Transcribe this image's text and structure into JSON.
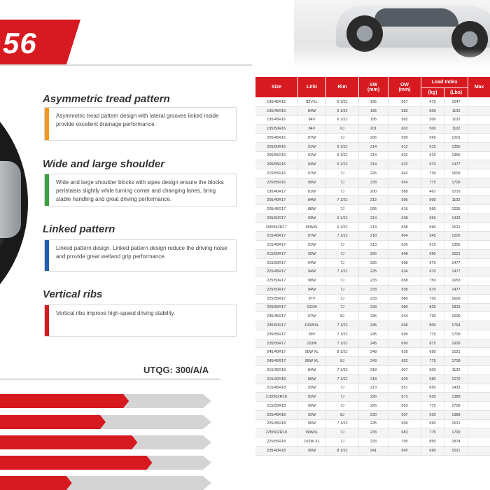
{
  "header": {
    "model": "56",
    "accent_color": "#d71920"
  },
  "features": [
    {
      "title": "Asymmetric tread pattern",
      "text": "Asymmetric tread pattern design with lateral grooves linked inside provide excellent drainage performance.",
      "color": "#f29a1f"
    },
    {
      "title": "Wide and large shoulder",
      "text": "Wide and large shoulder blocks with sipes design ensure the blocks peristalsis slightly while turning corner and changing lanes, bring stable handling and great driving performance.",
      "color": "#3aa142"
    },
    {
      "title": "Linked pattern",
      "text": "Linked pattern design. Linked pattern design reduce the driving noise and provide great wetland grip performance.",
      "color": "#1f5fae"
    },
    {
      "title": "Vertical ribs",
      "text": "Vertical ribs improve high-speed driving stability.",
      "color": "#d71920"
    }
  ],
  "utqg": "UTQG: 300/A/A",
  "bars": [
    0.61,
    0.5,
    0.65,
    0.72,
    0.34
  ],
  "table": {
    "headers": {
      "size": "Size",
      "li_si": "LI/SI",
      "rim": "Rim",
      "sw": "SW",
      "sw_unit": "(mm)",
      "ow": "OW",
      "ow_unit": "(mm)",
      "load_index": "Load Index",
      "kg": "(kg)",
      "lbs": "(Lbs)",
      "max": "Max"
    },
    "rows": [
      [
        "195/45R15",
        "82VXL",
        "6 1/2J",
        "195",
        "557",
        "475",
        "1047"
      ],
      [
        "195/45R16",
        "84W",
        "6 1/2J",
        "195",
        "582",
        "500",
        "1102"
      ],
      [
        "195/45R16",
        "84V",
        "6 1/2J",
        "195",
        "582",
        "500",
        "1102"
      ],
      [
        "195/50R16",
        "84V",
        "6J",
        "201",
        "602",
        "500",
        "1102"
      ],
      [
        "205/45R16",
        "87W",
        "7J",
        "206",
        "590",
        "545",
        "1201"
      ],
      [
        "205/50R16",
        "91W",
        "6 1/2J",
        "214",
        "612",
        "615",
        "1356"
      ],
      [
        "205/55R16",
        "91W",
        "6 1/2J",
        "214",
        "632",
        "615",
        "1356"
      ],
      [
        "205/55R16",
        "94W",
        "6 1/2J",
        "214",
        "632",
        "670",
        "1477"
      ],
      [
        "215/55R16",
        "97W",
        "7J",
        "226",
        "642",
        "730",
        "1609"
      ],
      [
        "225/55R16",
        "99W",
        "7J",
        "233",
        "654",
        "775",
        "1709"
      ],
      [
        "195/40R17",
        "81W",
        "7J",
        "200",
        "588",
        "462",
        "1019"
      ],
      [
        "205/40R17",
        "84W",
        "7 1/2J",
        "212",
        "596",
        "500",
        "1102"
      ],
      [
        "205/45R17",
        "88W",
        "7J",
        "206",
        "616",
        "560",
        "1235"
      ],
      [
        "205/50R17",
        "93W",
        "6 1/2J",
        "214",
        "638",
        "650",
        "1433"
      ],
      [
        "205/55ZR17",
        "95WXL",
        "6 1/2J",
        "214",
        "658",
        "690",
        "1521"
      ],
      [
        "215/40R17",
        "87W",
        "7 1/2J",
        "218",
        "604",
        "545",
        "1202"
      ],
      [
        "215/45R17",
        "91W",
        "7J",
        "213",
        "626",
        "615",
        "1356"
      ],
      [
        "215/50R17",
        "95W",
        "7J",
        "226",
        "648",
        "690",
        "1521"
      ],
      [
        "215/55R17",
        "94W",
        "7J",
        "226",
        "668",
        "670",
        "1477"
      ],
      [
        "225/45R17",
        "94W",
        "7 1/2J",
        "225",
        "634",
        "670",
        "1477"
      ],
      [
        "225/50R17",
        "98W",
        "7J",
        "233",
        "658",
        "750",
        "1653"
      ],
      [
        "225/50R17",
        "94W",
        "7J",
        "233",
        "658",
        "670",
        "1477"
      ],
      [
        "225/55R17",
        "97V",
        "7J",
        "233",
        "680",
        "730",
        "1609"
      ],
      [
        "225/55R17",
        "101W",
        "7J",
        "233",
        "680",
        "825",
        "1819"
      ],
      [
        "235/45R17",
        "97W",
        "8J",
        "236",
        "644",
        "730",
        "1609"
      ],
      [
        "235/50R17",
        "100WXL",
        "7 1/2J",
        "245",
        "668",
        "800",
        "1764"
      ],
      [
        "235/55R17",
        "99V",
        "7 1/2J",
        "245",
        "690",
        "775",
        "1709"
      ],
      [
        "235/55R17",
        "103W",
        "7 1/2J",
        "245",
        "690",
        "875",
        "1929"
      ],
      [
        "245/40R17",
        "95W XL",
        "8 1/2J",
        "248",
        "628",
        "690",
        "1521"
      ],
      [
        "245/45R17",
        "99W XL",
        "8J",
        "243",
        "652",
        "775",
        "1709"
      ],
      [
        "215/35R18",
        "84W",
        "7 1/2J",
        "218",
        "607",
        "500",
        "1102"
      ],
      [
        "215/40R18",
        "89W",
        "7 1/2J",
        "218",
        "629",
        "580",
        "1279"
      ],
      [
        "215/45R18",
        "93W",
        "7J",
        "213",
        "651",
        "650",
        "1433"
      ],
      [
        "215/50ZR18",
        "92W",
        "7J",
        "226",
        "673",
        "630",
        "1389"
      ],
      [
        "215/55R18",
        "99W",
        "7J",
        "226",
        "693",
        "775",
        "1709"
      ],
      [
        "225/40R18",
        "92W",
        "8J",
        "230",
        "637",
        "630",
        "1389"
      ],
      [
        "225/45R18",
        "95W",
        "7 1/2J",
        "225",
        "659",
        "690",
        "1521"
      ],
      [
        "225/50ZR18",
        "99WXL",
        "7J",
        "233",
        "683",
        "775",
        "1709"
      ],
      [
        "225/55R18",
        "102W XL",
        "7J",
        "233",
        "705",
        "850",
        "1874"
      ],
      [
        "235/40R18",
        "95W",
        "8 1/2J",
        "241",
        "645",
        "690",
        "1521"
      ]
    ]
  }
}
